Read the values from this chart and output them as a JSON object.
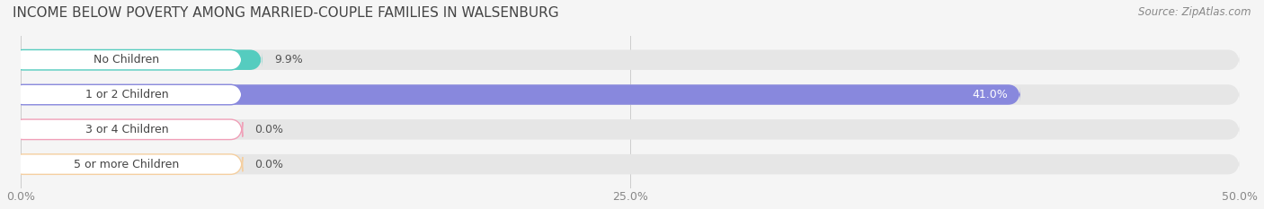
{
  "title": "INCOME BELOW POVERTY AMONG MARRIED-COUPLE FAMILIES IN WALSENBURG",
  "source": "Source: ZipAtlas.com",
  "categories": [
    "No Children",
    "1 or 2 Children",
    "3 or 4 Children",
    "5 or more Children"
  ],
  "values": [
    9.9,
    41.0,
    0.0,
    0.0
  ],
  "bar_colors": [
    "#55CCBF",
    "#8888DD",
    "#F0A0B8",
    "#F5CFA0"
  ],
  "xlim": [
    0,
    50
  ],
  "xticks": [
    0.0,
    25.0,
    50.0
  ],
  "xtick_labels": [
    "0.0%",
    "25.0%",
    "50.0%"
  ],
  "background_color": "#f5f5f5",
  "bar_background": "#e6e6e6",
  "title_fontsize": 11,
  "label_fontsize": 9,
  "value_fontsize": 9,
  "source_fontsize": 8.5,
  "bar_height": 0.58
}
